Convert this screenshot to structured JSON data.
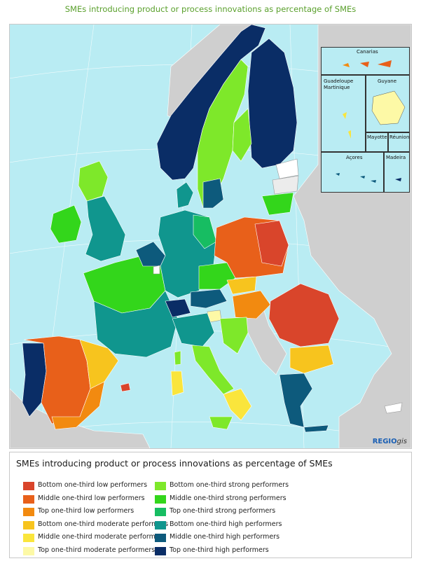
{
  "map": {
    "title": "SMEs introducing product or process innovations as percentage of SMEs",
    "credit_main": "REGIO",
    "credit_suffix": "gis",
    "insets": {
      "canarias": "Canarias",
      "guadeloupe": "Guadeloupe",
      "martinique": "Martinique",
      "guyane": "Guyane",
      "mayotte": "Mayotte",
      "reunion": "Réunion",
      "acores": "Açores",
      "madeira": "Madeira"
    }
  },
  "legend": {
    "title": "SMEs introducing product or process innovations as percentage of SMEs",
    "items": [
      {
        "label": "Bottom one-third low performers",
        "color": "#d9452b"
      },
      {
        "label": "Middle one-third low performers",
        "color": "#e8601a"
      },
      {
        "label": "Top one-third low performers",
        "color": "#f28a10"
      },
      {
        "label": "Bottom one-third moderate performers",
        "color": "#f7c41e"
      },
      {
        "label": "Middle one-third moderate performers",
        "color": "#fae53c"
      },
      {
        "label": "Top one-third moderate performers",
        "color": "#fdf9a6"
      },
      {
        "label": "Bottom one-third strong performers",
        "color": "#7ee82a"
      },
      {
        "label": "Middle one-third strong performers",
        "color": "#33d61b"
      },
      {
        "label": "Top one-third strong performers",
        "color": "#17bd62"
      },
      {
        "label": "Bottom one-third high performers",
        "color": "#10968e"
      },
      {
        "label": "Middle one-third high performers",
        "color": "#0d5a7c"
      },
      {
        "label": "Top one-third high performers",
        "color": "#0a2d66"
      }
    ]
  }
}
